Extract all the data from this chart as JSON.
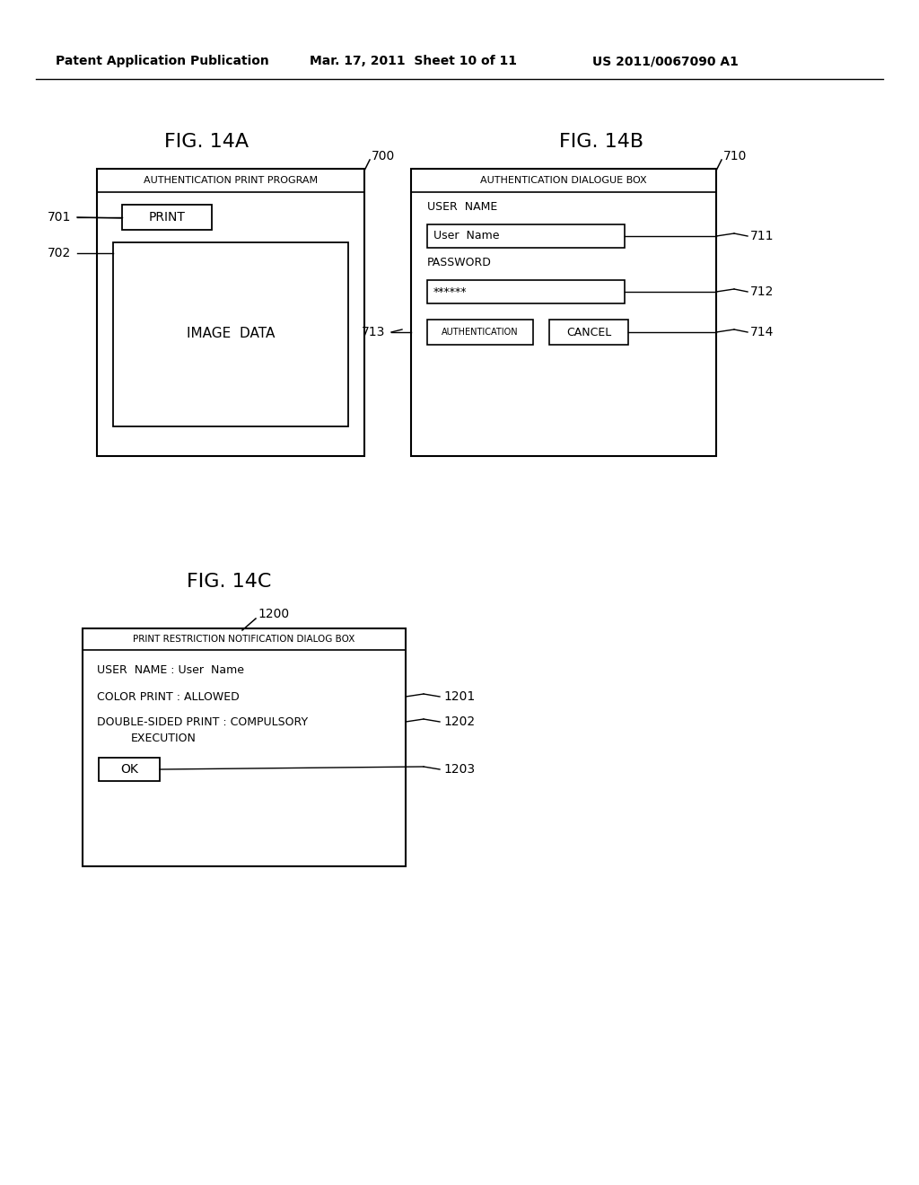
{
  "bg_color": "#ffffff",
  "header_left": "Patent Application Publication",
  "header_mid": "Mar. 17, 2011  Sheet 10 of 11",
  "header_right": "US 2011/0067090 A1",
  "fig14a_title": "FIG. 14A",
  "fig14a_label": "700",
  "fig14a_outer_title": "AUTHENTICATION PRINT PROGRAM",
  "fig14a_btn_label": "PRINT",
  "fig14a_box_label": "IMAGE  DATA",
  "label_701": "701",
  "label_702": "702",
  "fig14b_title": "FIG. 14B",
  "fig14b_label": "710",
  "fig14b_outer_title": "AUTHENTICATION DIALOGUE BOX",
  "fig14b_field1_label": "USER  NAME",
  "fig14b_field1_value": "User  Name",
  "fig14b_field2_label": "PASSWORD",
  "fig14b_field2_value": "******",
  "fig14b_btn1": "AUTHENTICATION",
  "fig14b_btn2": "CANCEL",
  "label_711": "711",
  "label_712": "712",
  "label_713": "713",
  "label_714": "714",
  "fig14c_title": "FIG. 14C",
  "fig14c_label": "1200",
  "fig14c_outer_title": "PRINT RESTRICTION NOTIFICATION DIALOG BOX",
  "fig14c_line1": "USER  NAME : User  Name",
  "fig14c_line2": "COLOR PRINT : ALLOWED",
  "fig14c_line3": "DOUBLE-SIDED PRINT : COMPULSORY",
  "fig14c_line3b": "EXECUTION",
  "fig14c_btn": "OK",
  "label_1201": "1201",
  "label_1202": "1202",
  "label_1203": "1203"
}
